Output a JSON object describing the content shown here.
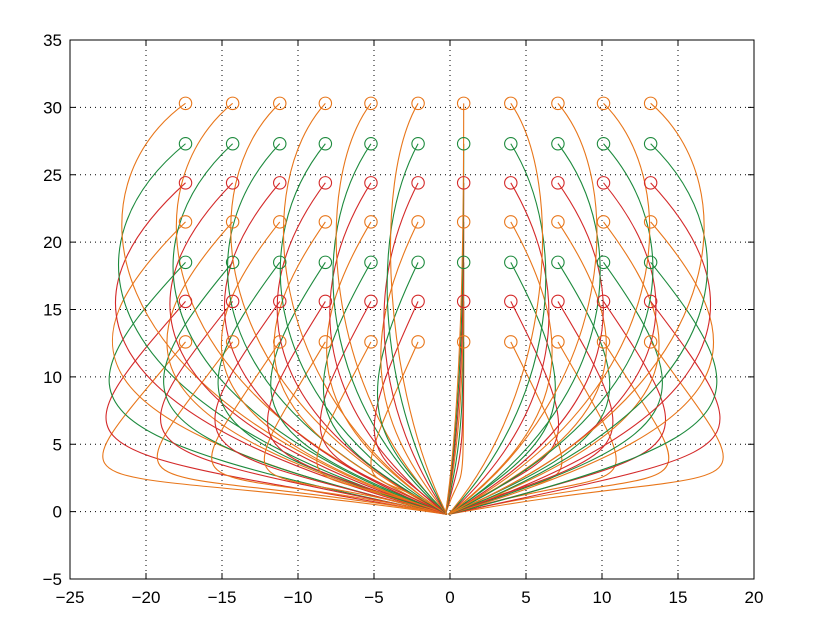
{
  "chart_data": {
    "type": "line",
    "title": "",
    "xlabel": "",
    "ylabel": "",
    "xlim": [
      -25,
      20
    ],
    "ylim": [
      -5,
      35
    ],
    "x_ticks": [
      -25,
      -20,
      -15,
      -10,
      -5,
      0,
      5,
      10,
      15,
      20
    ],
    "y_ticks": [
      -5,
      0,
      5,
      10,
      15,
      20,
      25,
      30,
      35
    ],
    "x_tick_labels": [
      "−25",
      "−20",
      "−15",
      "−10",
      "−5",
      "0",
      "5",
      "10",
      "15",
      "20"
    ],
    "y_tick_labels": [
      "−5",
      "0",
      "5",
      "10",
      "15",
      "20",
      "25",
      "30",
      "35"
    ],
    "grid": true,
    "grid_style": "dotted",
    "legend": "none",
    "marker": "circle",
    "converge_point": [
      0,
      0
    ],
    "start_columns_x": [
      -17.4,
      -14.3,
      -11.2,
      -8.2,
      -5.2,
      -2.1,
      0.9,
      4.0,
      7.1,
      10.1,
      13.2
    ],
    "start_rows_y": [
      12.6,
      15.6,
      18.5,
      21.5,
      24.4,
      27.3,
      30.3
    ],
    "palette": [
      "#e8761a",
      "#000000",
      "#3b4fa3",
      "#70b93d",
      "#d42a2a",
      "#5ecad8",
      "#c03ea8",
      "#7c7f2a",
      "#1d8a3d",
      "#f0e02a",
      "#8b1a1a",
      "#2e6fb5"
    ],
    "series_note_count": 77
  }
}
